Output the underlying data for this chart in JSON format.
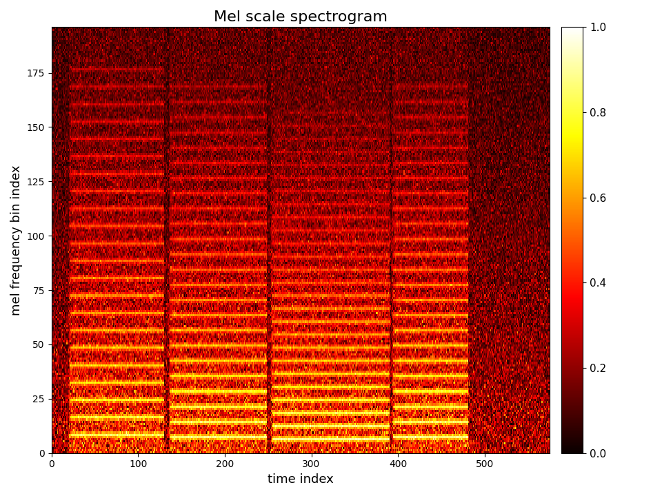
{
  "title": "Mel scale spectrogram",
  "xlabel": "time index",
  "ylabel": "mel frequency bin index",
  "n_mels": 196,
  "n_time": 575,
  "colormap": "hot",
  "vmin": 0.0,
  "vmax": 1.0,
  "colorbar_ticks": [
    0.0,
    0.2,
    0.4,
    0.6,
    0.8,
    1.0
  ],
  "figsize": [
    9.6,
    7.2
  ],
  "dpi": 100,
  "title_fontsize": 16,
  "label_fontsize": 13,
  "xticks": [
    0,
    100,
    200,
    300,
    400,
    500
  ],
  "yticks": [
    0,
    25,
    50,
    75,
    100,
    125,
    150,
    175
  ],
  "note_events": [
    {
      "t_start": 20,
      "t_end": 130,
      "fundamental": 8,
      "n_harmonics": 22,
      "base_amp": 0.7,
      "amp_decay": 0.88
    },
    {
      "t_start": 135,
      "t_end": 248,
      "fundamental": 7,
      "n_harmonics": 24,
      "base_amp": 0.85,
      "amp_decay": 0.87
    },
    {
      "t_start": 253,
      "t_end": 390,
      "fundamental": 6,
      "n_harmonics": 26,
      "base_amp": 0.95,
      "amp_decay": 0.86
    },
    {
      "t_start": 393,
      "t_end": 480,
      "fundamental": 7,
      "n_harmonics": 24,
      "base_amp": 0.9,
      "amp_decay": 0.87
    }
  ]
}
